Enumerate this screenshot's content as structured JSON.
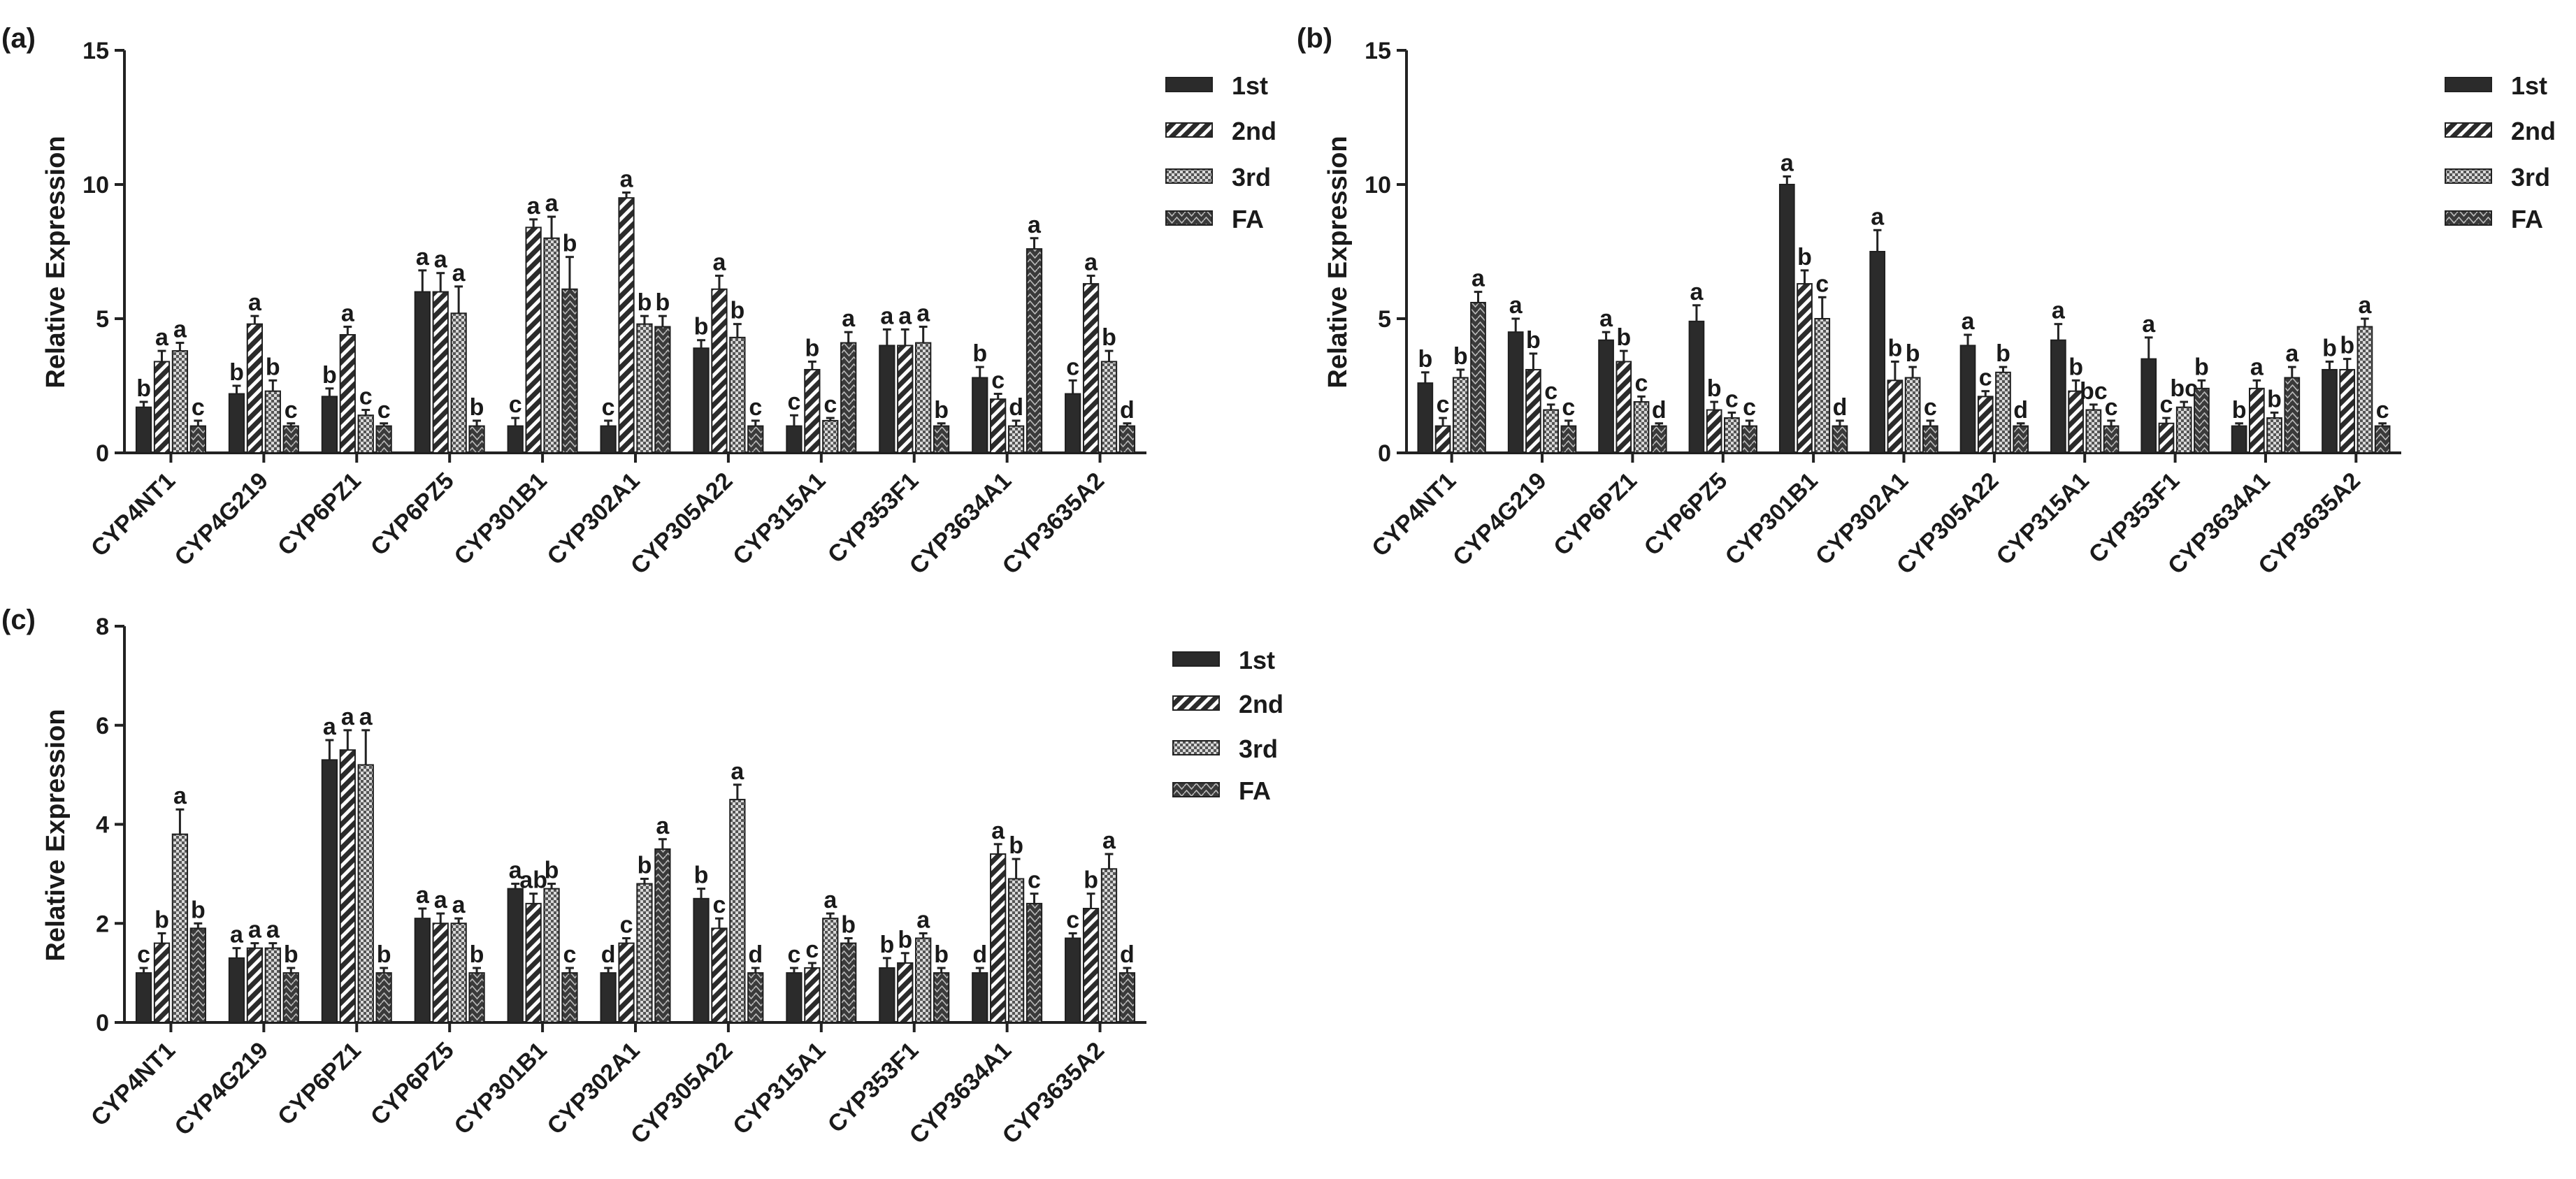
{
  "figure": {
    "ylabel": "Relative Expression",
    "legend": [
      "1st",
      "2nd",
      "3rd",
      "FA"
    ],
    "categories": [
      "CYP4NT1",
      "CYP4G219",
      "CYP6PZ1",
      "CYP6PZ5",
      "CYP301B1",
      "CYP302A1",
      "CYP305A22",
      "CYP315A1",
      "CYP353F1",
      "CYP3634A1",
      "CYP3635A2"
    ]
  },
  "chart_data": [
    {
      "panel": "(a)",
      "type": "bar",
      "ylabel": "Relative Expression",
      "ylim": [
        0,
        15
      ],
      "yticks": [
        0,
        5,
        10,
        15
      ],
      "legend_position": "top-right",
      "categories": [
        "CYP4NT1",
        "CYP4G219",
        "CYP6PZ1",
        "CYP6PZ5",
        "CYP301B1",
        "CYP302A1",
        "CYP305A22",
        "CYP315A1",
        "CYP353F1",
        "CYP3634A1",
        "CYP3635A2"
      ],
      "series": [
        {
          "name": "1st",
          "values": [
            1.7,
            2.2,
            2.1,
            6.0,
            1.0,
            1.0,
            3.9,
            1.0,
            4.0,
            2.8,
            2.2
          ],
          "errors": [
            0.2,
            0.3,
            0.3,
            0.8,
            0.3,
            0.2,
            0.3,
            0.4,
            0.6,
            0.4,
            0.5
          ],
          "letters": [
            "b",
            "b",
            "b",
            "a",
            "c",
            "c",
            "b",
            "c",
            "a",
            "b",
            "c"
          ]
        },
        {
          "name": "2nd",
          "values": [
            3.4,
            4.8,
            4.4,
            6.0,
            8.4,
            9.5,
            6.1,
            3.1,
            4.0,
            2.0,
            6.3
          ],
          "errors": [
            0.4,
            0.3,
            0.3,
            0.7,
            0.3,
            0.2,
            0.5,
            0.3,
            0.6,
            0.2,
            0.3
          ],
          "letters": [
            "a",
            "a",
            "a",
            "a",
            "a",
            "a",
            "a",
            "b",
            "a",
            "c",
            "a"
          ]
        },
        {
          "name": "3rd",
          "values": [
            3.8,
            2.3,
            1.4,
            5.2,
            8.0,
            4.8,
            4.3,
            1.2,
            4.1,
            1.0,
            3.4
          ],
          "errors": [
            0.3,
            0.4,
            0.2,
            1.0,
            0.8,
            0.3,
            0.5,
            0.1,
            0.6,
            0.2,
            0.4
          ],
          "letters": [
            "a",
            "b",
            "c",
            "a",
            "a",
            "b",
            "b",
            "c",
            "a",
            "d",
            "b"
          ]
        },
        {
          "name": "FA",
          "values": [
            1.0,
            1.0,
            1.0,
            1.0,
            6.1,
            4.7,
            1.0,
            4.1,
            1.0,
            7.6,
            1.0
          ],
          "errors": [
            0.2,
            0.1,
            0.1,
            0.2,
            1.2,
            0.4,
            0.2,
            0.4,
            0.1,
            0.4,
            0.1
          ],
          "letters": [
            "c",
            "c",
            "c",
            "b",
            "b",
            "b",
            "c",
            "a",
            "b",
            "a",
            "d"
          ]
        }
      ]
    },
    {
      "panel": "(b)",
      "type": "bar",
      "ylabel": "Relative Expression",
      "ylim": [
        0,
        15
      ],
      "yticks": [
        0,
        5,
        10,
        15
      ],
      "legend_position": "top-right",
      "categories": [
        "CYP4NT1",
        "CYP4G219",
        "CYP6PZ1",
        "CYP6PZ5",
        "CYP301B1",
        "CYP302A1",
        "CYP305A22",
        "CYP315A1",
        "CYP353F1",
        "CYP3634A1",
        "CYP3635A2"
      ],
      "series": [
        {
          "name": "1st",
          "values": [
            2.6,
            4.5,
            4.2,
            4.9,
            10.0,
            7.5,
            4.0,
            4.2,
            3.5,
            1.0,
            3.1
          ],
          "errors": [
            0.4,
            0.5,
            0.3,
            0.6,
            0.3,
            0.8,
            0.4,
            0.6,
            0.8,
            0.1,
            0.3
          ],
          "letters": [
            "b",
            "a",
            "a",
            "a",
            "a",
            "a",
            "a",
            "a",
            "a",
            "b",
            "b"
          ]
        },
        {
          "name": "2nd",
          "values": [
            1.0,
            3.1,
            3.4,
            1.6,
            6.3,
            2.7,
            2.1,
            2.3,
            1.1,
            2.4,
            3.1
          ],
          "errors": [
            0.3,
            0.6,
            0.4,
            0.3,
            0.5,
            0.7,
            0.2,
            0.4,
            0.2,
            0.3,
            0.4
          ],
          "letters": [
            "c",
            "b",
            "b",
            "b",
            "b",
            "b",
            "c",
            "b",
            "c",
            "a",
            "b"
          ]
        },
        {
          "name": "3rd",
          "values": [
            2.8,
            1.6,
            1.9,
            1.3,
            5.0,
            2.8,
            3.0,
            1.6,
            1.7,
            1.3,
            4.7
          ],
          "errors": [
            0.3,
            0.2,
            0.2,
            0.2,
            0.8,
            0.4,
            0.2,
            0.2,
            0.2,
            0.2,
            0.3
          ],
          "letters": [
            "b",
            "c",
            "c",
            "c",
            "c",
            "b",
            "b",
            "bc",
            "bc",
            "b",
            "a"
          ]
        },
        {
          "name": "FA",
          "values": [
            5.6,
            1.0,
            1.0,
            1.0,
            1.0,
            1.0,
            1.0,
            1.0,
            2.4,
            2.8,
            1.0
          ],
          "errors": [
            0.4,
            0.2,
            0.1,
            0.2,
            0.2,
            0.2,
            0.1,
            0.2,
            0.3,
            0.4,
            0.1
          ],
          "letters": [
            "a",
            "c",
            "d",
            "c",
            "d",
            "c",
            "d",
            "c",
            "b",
            "a",
            "c"
          ]
        }
      ]
    },
    {
      "panel": "(c)",
      "type": "bar",
      "ylabel": "Relative Expression",
      "ylim": [
        0,
        8
      ],
      "yticks": [
        0,
        2,
        4,
        6,
        8
      ],
      "legend_position": "top-right",
      "categories": [
        "CYP4NT1",
        "CYP4G219",
        "CYP6PZ1",
        "CYP6PZ5",
        "CYP301B1",
        "CYP302A1",
        "CYP305A22",
        "CYP315A1",
        "CYP353F1",
        "CYP3634A1",
        "CYP3635A2"
      ],
      "series": [
        {
          "name": "1st",
          "values": [
            1.0,
            1.3,
            5.3,
            2.1,
            2.7,
            1.0,
            2.5,
            1.0,
            1.1,
            1.0,
            1.7
          ],
          "errors": [
            0.1,
            0.2,
            0.4,
            0.2,
            0.1,
            0.1,
            0.2,
            0.1,
            0.2,
            0.1,
            0.1
          ],
          "letters": [
            "c",
            "a",
            "a",
            "a",
            "a",
            "d",
            "b",
            "c",
            "b",
            "d",
            "c"
          ]
        },
        {
          "name": "2nd",
          "values": [
            1.6,
            1.5,
            5.5,
            2.0,
            2.4,
            1.6,
            1.9,
            1.1,
            1.2,
            3.4,
            2.3
          ],
          "errors": [
            0.2,
            0.1,
            0.4,
            0.2,
            0.2,
            0.1,
            0.2,
            0.1,
            0.2,
            0.2,
            0.3
          ],
          "letters": [
            "b",
            "a",
            "a",
            "a",
            "ab",
            "c",
            "c",
            "c",
            "b",
            "a",
            "b"
          ]
        },
        {
          "name": "3rd",
          "values": [
            3.8,
            1.5,
            5.2,
            2.0,
            2.7,
            2.8,
            4.5,
            2.1,
            1.7,
            2.9,
            3.1
          ],
          "errors": [
            0.5,
            0.1,
            0.7,
            0.1,
            0.1,
            0.1,
            0.3,
            0.1,
            0.1,
            0.4,
            0.3
          ],
          "letters": [
            "a",
            "a",
            "a",
            "a",
            "b",
            "b",
            "a",
            "a",
            "a",
            "b",
            "a"
          ]
        },
        {
          "name": "FA",
          "values": [
            1.9,
            1.0,
            1.0,
            1.0,
            1.0,
            3.5,
            1.0,
            1.6,
            1.0,
            2.4,
            1.0
          ],
          "errors": [
            0.1,
            0.1,
            0.1,
            0.1,
            0.1,
            0.2,
            0.1,
            0.1,
            0.1,
            0.2,
            0.1
          ],
          "letters": [
            "b",
            "b",
            "b",
            "b",
            "c",
            "a",
            "d",
            "b",
            "b",
            "c",
            "d"
          ]
        }
      ]
    }
  ]
}
